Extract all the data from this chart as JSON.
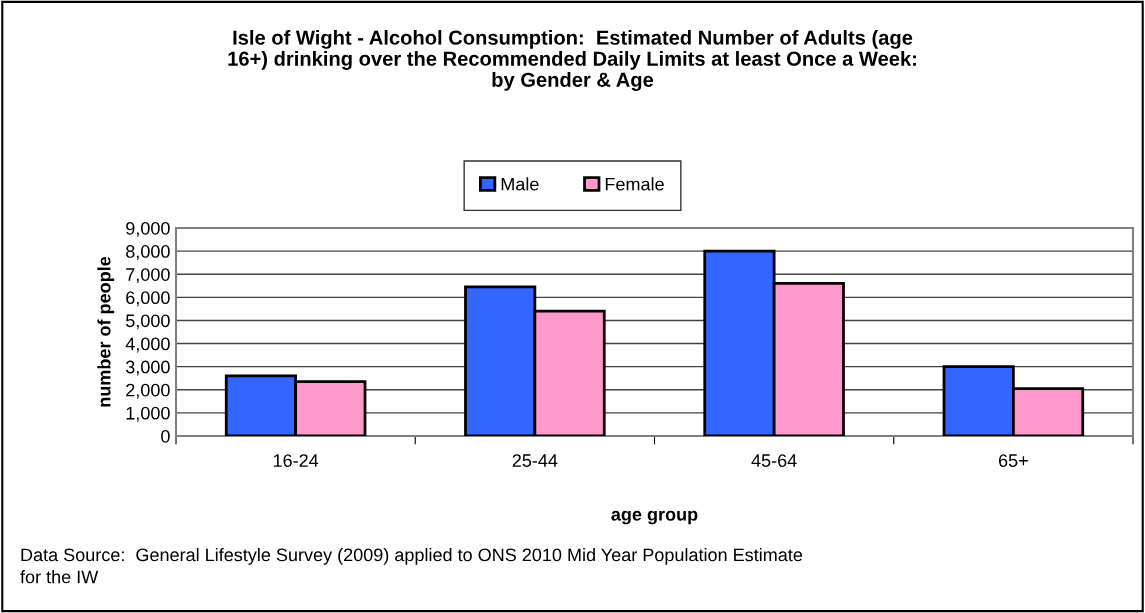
{
  "chart_data": {
    "type": "bar",
    "title": "Isle of Wight - Alcohol Consumption:  Estimated Number of Adults (age\n16+) drinking over the Recommended Daily Limits at least Once a Week:\nby Gender & Age",
    "xlabel": "age group",
    "ylabel": "number of people",
    "categories": [
      "16-24",
      "25-44",
      "45-64",
      "65+"
    ],
    "series": [
      {
        "name": "Male",
        "color": "#3366ff",
        "values": [
          2600,
          6450,
          8000,
          3000
        ]
      },
      {
        "name": "Female",
        "color": "#ff99cc",
        "values": [
          2350,
          5400,
          6600,
          2050
        ]
      }
    ],
    "ylim": [
      0,
      9000
    ],
    "yticks": [
      {
        "value": 0,
        "label": "0"
      },
      {
        "value": 1000,
        "label": "1,000"
      },
      {
        "value": 2000,
        "label": "2,000"
      },
      {
        "value": 3000,
        "label": "3,000"
      },
      {
        "value": 4000,
        "label": "4,000"
      },
      {
        "value": 5000,
        "label": "5,000"
      },
      {
        "value": 6000,
        "label": "6,000"
      },
      {
        "value": 7000,
        "label": "7,000"
      },
      {
        "value": 8000,
        "label": "8,000"
      },
      {
        "value": 9000,
        "label": "9,000"
      }
    ],
    "grid": "y",
    "legend": "top",
    "annotations": [
      "Data Source:  General Lifestyle Survey (2009) applied to ONS 2010 Mid Year Population Estimate\nfor the IW"
    ]
  }
}
